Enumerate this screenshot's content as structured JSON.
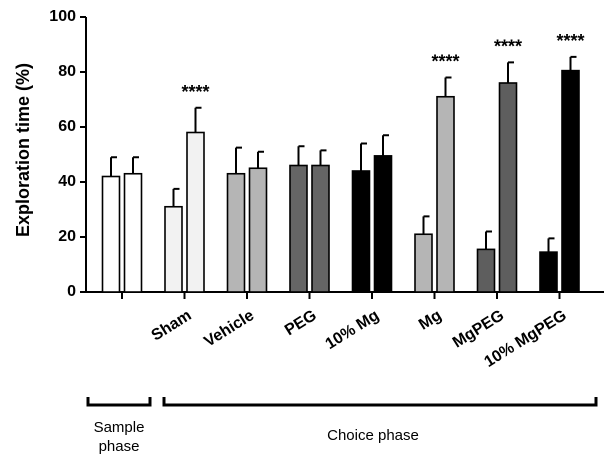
{
  "chart_data": {
    "type": "bar",
    "ylabel": "Exploration time (%)",
    "ylim": [
      0,
      100
    ],
    "yticks": [
      0,
      20,
      40,
      60,
      80,
      100
    ],
    "categories": [
      "",
      "Sham",
      "Vehicle",
      "PEG",
      "10% Mg",
      "Mg",
      "MgPEG",
      "10% MgPEG"
    ],
    "groups": [
      {
        "category": "",
        "bars": [
          {
            "value": 42,
            "error": 7
          },
          {
            "value": 43,
            "error": 6
          }
        ],
        "colors": [
          "#ffffff",
          "#ffffff"
        ],
        "significance": ""
      },
      {
        "category": "Sham",
        "bars": [
          {
            "value": 31,
            "error": 6.5
          },
          {
            "value": 58,
            "error": 9
          }
        ],
        "colors": [
          "#f2f2f2",
          "#f2f2f2"
        ],
        "significance": "****"
      },
      {
        "category": "Vehicle",
        "bars": [
          {
            "value": 43,
            "error": 9.5
          },
          {
            "value": 45,
            "error": 6
          }
        ],
        "colors": [
          "#b5b5b5",
          "#b5b5b5"
        ],
        "significance": ""
      },
      {
        "category": "PEG",
        "bars": [
          {
            "value": 46,
            "error": 7
          },
          {
            "value": 46,
            "error": 5.5
          }
        ],
        "colors": [
          "#656565",
          "#656565"
        ],
        "significance": ""
      },
      {
        "category": "10% Mg",
        "bars": [
          {
            "value": 44,
            "error": 10
          },
          {
            "value": 49.5,
            "error": 7.5
          }
        ],
        "colors": [
          "#000000",
          "#000000"
        ],
        "significance": ""
      },
      {
        "category": "Mg",
        "bars": [
          {
            "value": 21,
            "error": 6.5
          },
          {
            "value": 71,
            "error": 7
          }
        ],
        "colors": [
          "#b5b5b5",
          "#b5b5b5"
        ],
        "significance": "****"
      },
      {
        "category": "MgPEG",
        "bars": [
          {
            "value": 15.5,
            "error": 6.5
          },
          {
            "value": 76,
            "error": 7.5
          }
        ],
        "colors": [
          "#5e5e5e",
          "#5e5e5e"
        ],
        "significance": "****"
      },
      {
        "category": "10% MgPEG",
        "bars": [
          {
            "value": 14.5,
            "error": 5
          },
          {
            "value": 80.5,
            "error": 5
          }
        ],
        "colors": [
          "#000000",
          "#000000"
        ],
        "significance": "****"
      }
    ],
    "phases": [
      {
        "label": "Sample\nphase",
        "groups": [
          0
        ]
      },
      {
        "label": "Choice phase",
        "groups": [
          1,
          2,
          3,
          4,
          5,
          6,
          7
        ]
      }
    ]
  }
}
